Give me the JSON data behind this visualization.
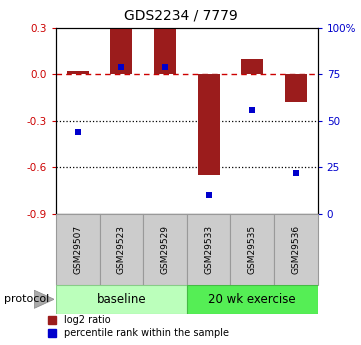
{
  "title": "GDS2234 / 7779",
  "samples": [
    "GSM29507",
    "GSM29523",
    "GSM29529",
    "GSM29533",
    "GSM29535",
    "GSM29536"
  ],
  "log2_ratio": [
    0.02,
    0.3,
    0.3,
    -0.65,
    0.1,
    -0.18
  ],
  "percentile_rank": [
    44,
    79,
    79,
    10,
    56,
    22
  ],
  "bar_color": "#9b1c1c",
  "dot_color": "#0000cc",
  "ylim_left": [
    -0.9,
    0.3
  ],
  "ylim_right": [
    0,
    100
  ],
  "yticks_left": [
    0.3,
    0.0,
    -0.3,
    -0.6,
    -0.9
  ],
  "yticks_right": [
    100,
    75,
    50,
    25,
    0
  ],
  "dotted_lines": [
    -0.3,
    -0.6
  ],
  "baseline_color": "#bbffbb",
  "exercise_color": "#55ee55",
  "sample_box_color": "#cccccc",
  "sample_box_edge": "#999999",
  "protocol_label": "protocol",
  "baseline_label": "baseline",
  "exercise_label": "20 wk exercise",
  "legend_red": "log2 ratio",
  "legend_blue": "percentile rank within the sample",
  "bar_width": 0.5,
  "n_baseline": 3,
  "n_exercise": 3
}
